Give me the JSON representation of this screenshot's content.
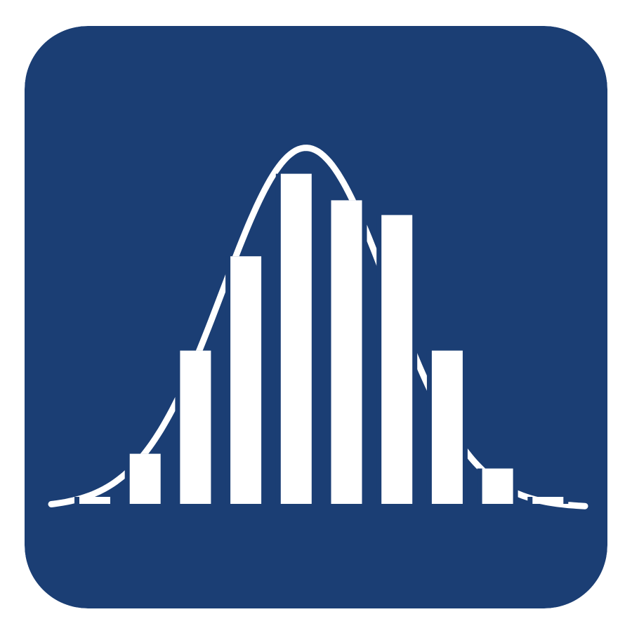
{
  "icon": {
    "name": "normal-distribution-histogram-icon",
    "colors": {
      "tile": "#1b3e74",
      "glyph": "#ffffff"
    },
    "bars": [
      0.02,
      0.17,
      0.52,
      0.84,
      1.12,
      1.03,
      0.98,
      0.52,
      0.12,
      0.02
    ],
    "curve": "bell"
  }
}
